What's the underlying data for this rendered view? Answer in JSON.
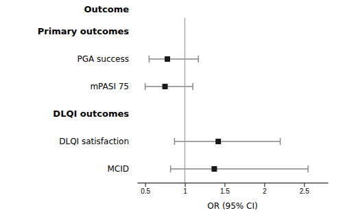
{
  "chart_data": {
    "type": "forest",
    "ylabel": "Outcome",
    "xlabel": "OR (95% CI)",
    "groups": [
      {
        "name": "Primary outcomes",
        "categories": [
          "PGA success",
          "mPASI 75"
        ],
        "values": [
          0.78,
          0.75
        ],
        "ci_lower": [
          0.55,
          0.5
        ],
        "ci_upper": [
          1.17,
          1.1
        ]
      },
      {
        "name": "DLQI outcomes",
        "categories": [
          "DLQI satisfaction",
          "MCID"
        ],
        "values": [
          1.42,
          1.37
        ],
        "ci_lower": [
          0.87,
          0.82
        ],
        "ci_upper": [
          2.2,
          2.55
        ]
      }
    ],
    "reference_line": 1.0,
    "xlim": [
      0.4,
      2.8
    ],
    "xticks": [
      0.5,
      1,
      1.5,
      2,
      2.5
    ],
    "color": "#1a1a1a"
  }
}
